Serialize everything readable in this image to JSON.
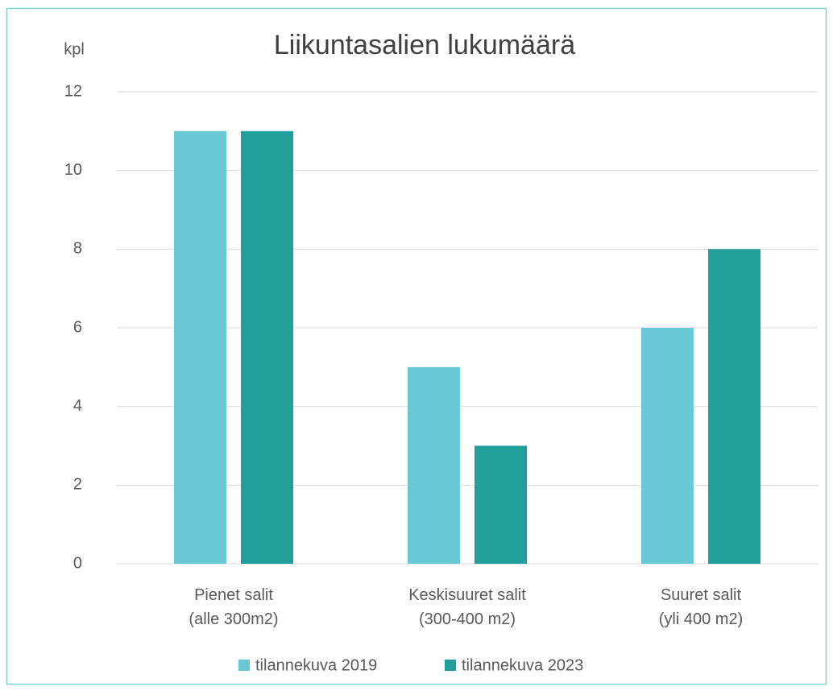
{
  "chart_data": {
    "type": "bar",
    "title": "Liikuntasalien lukumäärä",
    "y_label": "kpl",
    "categories": [
      "Pienet salit\n(alle 300m2)",
      "Keskisuuret salit\n(300-400 m2)",
      "Suuret salit\n(yli 400 m2)"
    ],
    "series": [
      {
        "name": "tilannekuva 2019",
        "color": "#69c8d6",
        "values": [
          11,
          5,
          6
        ]
      },
      {
        "name": "tilannekuva 2023",
        "color": "#209e9a",
        "values": [
          11,
          3,
          8
        ]
      }
    ],
    "ylim": [
      0,
      12
    ],
    "yticks": [
      0,
      2,
      4,
      6,
      8,
      10,
      12
    ],
    "grid": true,
    "legend": "bottom"
  }
}
